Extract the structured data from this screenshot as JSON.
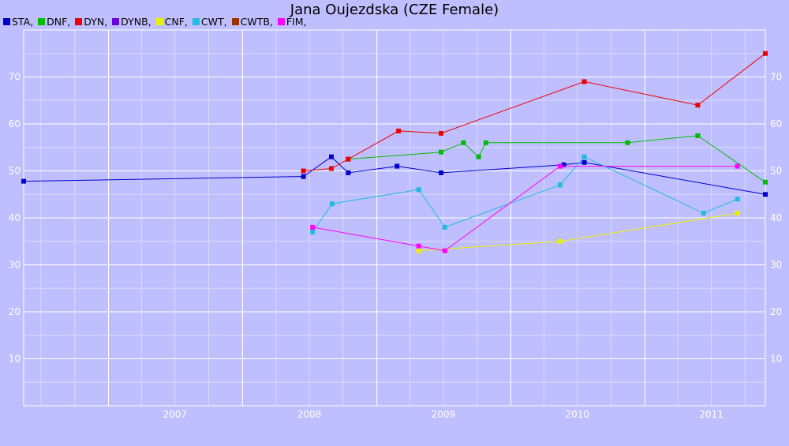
{
  "chart_data": {
    "type": "line",
    "title": "Jana Oujezdska (CZE Female)",
    "xlabel": "",
    "ylabel": "",
    "xlim": [
      "2006-05-15",
      "2011-11-25"
    ],
    "ylim": [
      0,
      80
    ],
    "x_ticks": [
      "2007",
      "2008",
      "2009",
      "2010",
      "2011"
    ],
    "y_ticks": [
      10,
      20,
      30,
      40,
      50,
      60,
      70
    ],
    "grid": true,
    "legend_position": "top-left",
    "series": [
      {
        "name": "STA,",
        "color": "#0000cc",
        "points": [
          [
            "2006-05-15",
            47.8
          ],
          [
            "2008-06-15",
            48.8
          ],
          [
            "2008-08-30",
            53.0
          ],
          [
            "2008-10-15",
            49.6
          ],
          [
            "2009-02-25",
            51.0
          ],
          [
            "2009-06-25",
            49.6
          ],
          [
            "2010-05-25",
            51.3
          ],
          [
            "2010-07-20",
            51.8
          ],
          [
            "2011-11-25",
            45.0
          ]
        ]
      },
      {
        "name": "DNF,",
        "color": "#00bb00",
        "points": [
          [
            "2008-10-15",
            52.5
          ],
          [
            "2009-06-25",
            54.0
          ],
          [
            "2009-08-25",
            56.0
          ],
          [
            "2009-10-05",
            53.0
          ],
          [
            "2009-10-25",
            56.0
          ],
          [
            "2010-11-15",
            56.0
          ],
          [
            "2011-05-25",
            57.5
          ],
          [
            "2011-11-25",
            47.6
          ]
        ]
      },
      {
        "name": "DYN,",
        "color": "#ee0000",
        "points": [
          [
            "2008-06-15",
            50.0
          ],
          [
            "2008-08-30",
            50.5
          ],
          [
            "2008-10-15",
            52.5
          ],
          [
            "2009-03-01",
            58.5
          ],
          [
            "2009-06-25",
            58.0
          ],
          [
            "2010-07-20",
            69.0
          ],
          [
            "2011-05-25",
            64.0
          ],
          [
            "2011-11-25",
            75.0
          ]
        ]
      },
      {
        "name": "DYNB,",
        "color": "#6600dd",
        "points": []
      },
      {
        "name": "CNF,",
        "color": "#eeee00",
        "points": [
          [
            "2009-04-25",
            33.0
          ],
          [
            "2010-05-15",
            35.0
          ],
          [
            "2011-09-10",
            41.0
          ]
        ]
      },
      {
        "name": "CWT,",
        "color": "#22bbdd",
        "points": [
          [
            "2008-07-10",
            37.0
          ],
          [
            "2008-09-01",
            43.0
          ],
          [
            "2009-04-25",
            46.0
          ],
          [
            "2009-07-05",
            38.0
          ],
          [
            "2010-05-15",
            47.0
          ],
          [
            "2010-07-20",
            53.0
          ],
          [
            "2011-06-10",
            41.0
          ],
          [
            "2011-09-10",
            44.0
          ]
        ]
      },
      {
        "name": "CWTB,",
        "color": "#993300",
        "points": []
      },
      {
        "name": "FIM,",
        "color": "#ff00ff",
        "points": [
          [
            "2008-07-10",
            38.0
          ],
          [
            "2009-04-25",
            34.0
          ],
          [
            "2009-07-05",
            33.0
          ],
          [
            "2010-05-15",
            51.0
          ],
          [
            "2011-09-10",
            51.0
          ]
        ]
      }
    ]
  }
}
